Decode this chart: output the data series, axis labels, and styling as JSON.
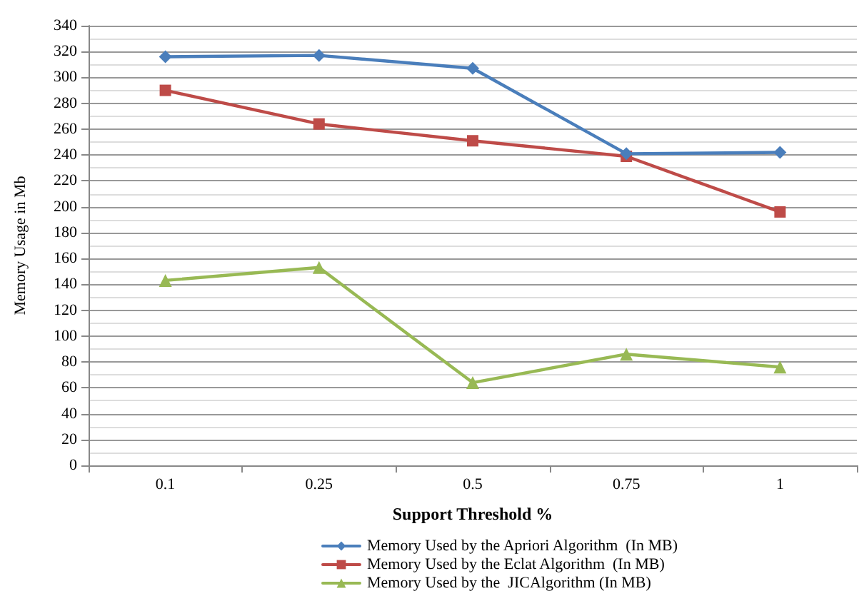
{
  "chart_data": {
    "type": "line",
    "xlabel": "Support Threshold %",
    "ylabel": "Memory Usage in Mb",
    "categories": [
      "0.1",
      "0.25",
      "0.5",
      "0.75",
      "1"
    ],
    "series": [
      {
        "name": "Memory Used by the Apriori Algorithm  (In MB)",
        "color": "#4a7ebb",
        "marker": "diamond",
        "values": [
          316,
          317,
          307,
          241,
          242
        ]
      },
      {
        "name": "Memory Used by the Eclat Algorithm  (In MB)",
        "color": "#be4b48",
        "marker": "square",
        "values": [
          290,
          264,
          251,
          239,
          196
        ]
      },
      {
        "name": "Memory Used by the  JICAlgorithm (In MB)",
        "color": "#98b954",
        "marker": "triangle",
        "values": [
          143,
          153,
          64,
          86,
          76
        ]
      }
    ],
    "ylim": [
      0,
      340
    ],
    "yticks": [
      0,
      20,
      40,
      60,
      80,
      100,
      120,
      140,
      160,
      180,
      200,
      220,
      240,
      260,
      280,
      300,
      320,
      340
    ],
    "grid": true,
    "legend": "bottom",
    "line_style": "solid"
  }
}
